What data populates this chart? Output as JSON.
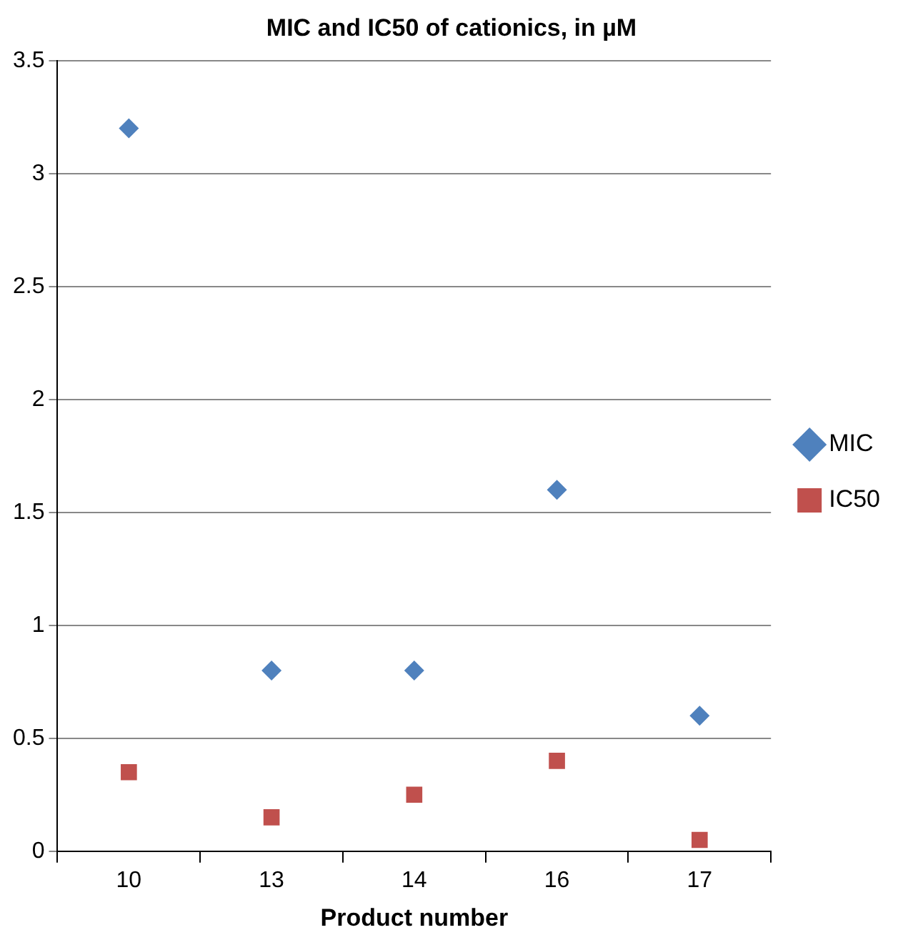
{
  "chart_data": {
    "type": "scatter",
    "title": "MIC and IC50 of cationics, in µM",
    "xlabel": "Product number",
    "categories": [
      "10",
      "13",
      "14",
      "16",
      "17"
    ],
    "series": [
      {
        "name": "MIC",
        "color": "#4f81bd",
        "marker": "diamond",
        "values": [
          3.2,
          0.8,
          0.8,
          1.6,
          0.6
        ]
      },
      {
        "name": "IC50",
        "color": "#c0504d",
        "marker": "square",
        "values": [
          0.35,
          0.15,
          0.25,
          0.4,
          0.05
        ]
      }
    ],
    "ylim": [
      0,
      3.5
    ],
    "yticks": [
      0,
      0.5,
      1,
      1.5,
      2,
      2.5,
      3,
      3.5
    ],
    "grid": "y",
    "legend": "right"
  }
}
